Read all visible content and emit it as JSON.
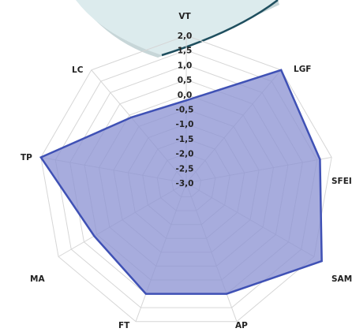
{
  "chart_data": {
    "type": "radar",
    "axes": [
      "VT",
      "LGF",
      "SFEI",
      "SAM",
      "AP",
      "FT",
      "MA",
      "TP",
      "LC"
    ],
    "values": [
      -0.2,
      2.0,
      1.6,
      2.3,
      1.0,
      1.0,
      0.6,
      2.0,
      -0.1
    ],
    "range": [
      -3.0,
      2.0
    ],
    "ticks": [
      "2,0",
      "1,5",
      "1,0",
      "0,5",
      "0,0",
      "-0,5",
      "-1,0",
      "-1,5",
      "-2,0",
      "-2,5",
      "-3,0"
    ],
    "grid": true,
    "fill_color": "#8e95d4",
    "line_color": "#3f51b5"
  },
  "decor": {
    "card_color": "#dcebed",
    "card_edge_color": "#1f4f5f"
  }
}
